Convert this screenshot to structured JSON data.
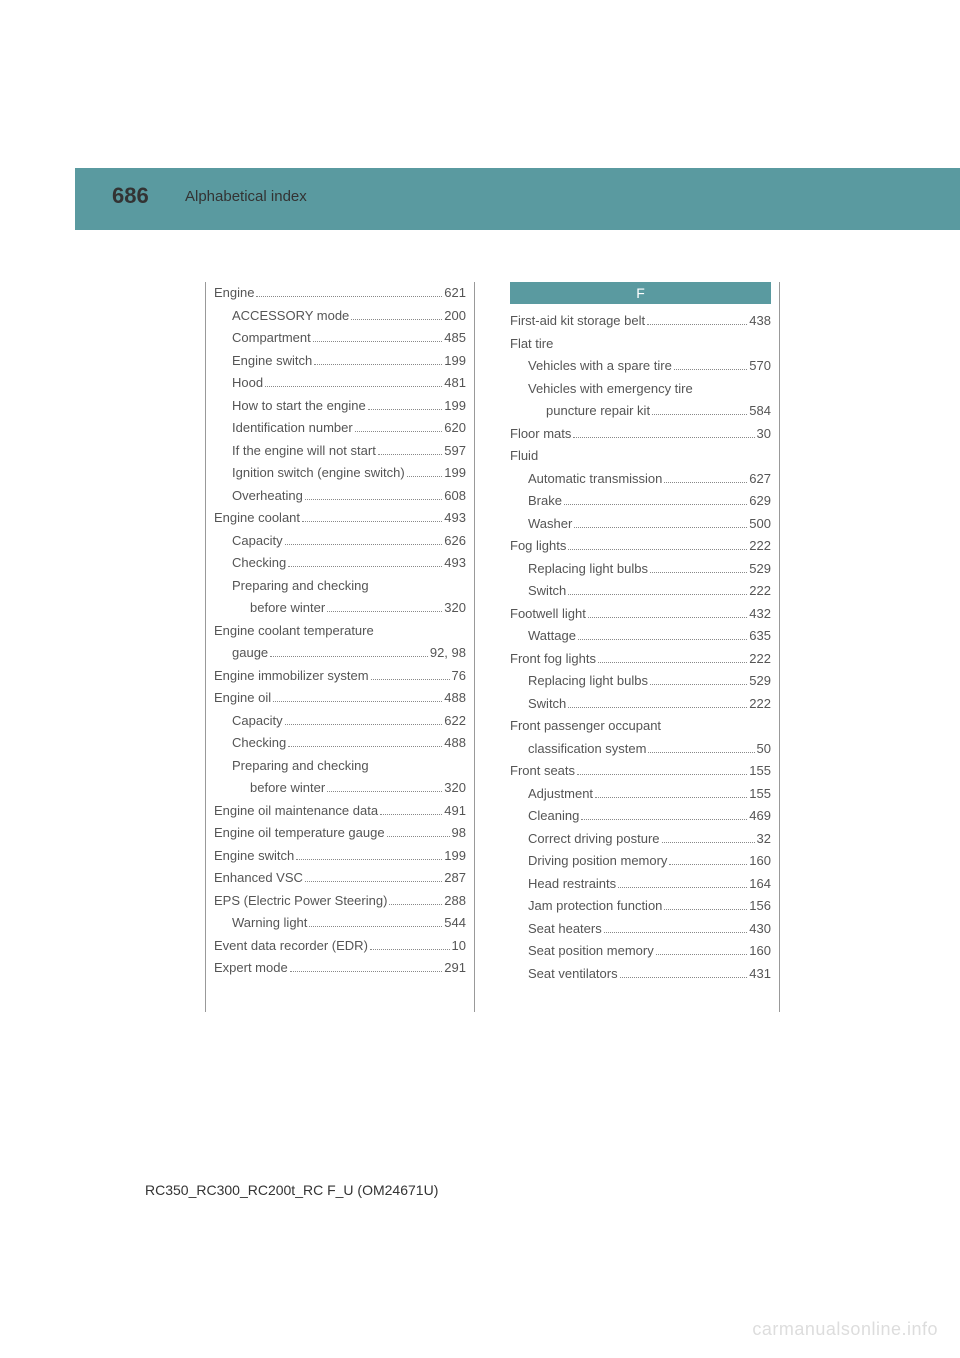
{
  "header": {
    "page_number": "686",
    "title": "Alphabetical index",
    "band_color": "#5a9aa0"
  },
  "footer": {
    "text": "RC350_RC300_RC200t_RC F_U (OM24671U)",
    "watermark": "carmanualsonline.info"
  },
  "left_column": [
    {
      "label": "Engine",
      "page": "621",
      "indent": 0
    },
    {
      "label": "ACCESSORY mode",
      "page": "200",
      "indent": 1
    },
    {
      "label": "Compartment",
      "page": "485",
      "indent": 1
    },
    {
      "label": "Engine switch",
      "page": "199",
      "indent": 1
    },
    {
      "label": "Hood",
      "page": "481",
      "indent": 1
    },
    {
      "label": "How to start the engine",
      "page": "199",
      "indent": 1
    },
    {
      "label": "Identification number",
      "page": "620",
      "indent": 1
    },
    {
      "label": "If the engine will not start",
      "page": "597",
      "indent": 1
    },
    {
      "label": "Ignition switch (engine switch)",
      "page": "199",
      "indent": 1
    },
    {
      "label": "Overheating",
      "page": "608",
      "indent": 1
    },
    {
      "label": "Engine coolant",
      "page": "493",
      "indent": 0
    },
    {
      "label": "Capacity",
      "page": "626",
      "indent": 1
    },
    {
      "label": "Checking",
      "page": "493",
      "indent": 1
    },
    {
      "label": "Preparing and checking",
      "page": "",
      "indent": 1,
      "no_page": true
    },
    {
      "label": "before winter",
      "page": "320",
      "indent": 2
    },
    {
      "label": "Engine coolant temperature",
      "page": "",
      "indent": 0,
      "no_page": true
    },
    {
      "label": "gauge",
      "page": "92, 98",
      "indent": 1,
      "continuation": true
    },
    {
      "label": "Engine immobilizer system",
      "page": "76",
      "indent": 0
    },
    {
      "label": "Engine oil",
      "page": "488",
      "indent": 0
    },
    {
      "label": "Capacity",
      "page": "622",
      "indent": 1
    },
    {
      "label": "Checking",
      "page": "488",
      "indent": 1
    },
    {
      "label": "Preparing and checking",
      "page": "",
      "indent": 1,
      "no_page": true
    },
    {
      "label": "before winter",
      "page": "320",
      "indent": 2
    },
    {
      "label": "Engine oil maintenance data",
      "page": "491",
      "indent": 0
    },
    {
      "label": "Engine oil temperature gauge",
      "page": "98",
      "indent": 0
    },
    {
      "label": "Engine switch",
      "page": "199",
      "indent": 0
    },
    {
      "label": "Enhanced VSC",
      "page": "287",
      "indent": 0
    },
    {
      "label": "EPS (Electric Power Steering)",
      "page": "288",
      "indent": 0
    },
    {
      "label": "Warning light",
      "page": "544",
      "indent": 1
    },
    {
      "label": "Event data recorder (EDR)",
      "page": "10",
      "indent": 0
    },
    {
      "label": "Expert mode",
      "page": "291",
      "indent": 0
    }
  ],
  "right_column": {
    "section_letter": "F",
    "entries": [
      {
        "label": "First-aid kit storage belt",
        "page": "438",
        "indent": 0
      },
      {
        "label": "Flat tire",
        "page": "",
        "indent": 0,
        "no_page": true
      },
      {
        "label": "Vehicles with a spare tire",
        "page": "570",
        "indent": 1
      },
      {
        "label": "Vehicles with emergency tire",
        "page": "",
        "indent": 1,
        "no_page": true
      },
      {
        "label": "puncture repair kit",
        "page": "584",
        "indent": 2
      },
      {
        "label": "Floor mats",
        "page": "30",
        "indent": 0
      },
      {
        "label": "Fluid",
        "page": "",
        "indent": 0,
        "no_page": true
      },
      {
        "label": "Automatic transmission",
        "page": "627",
        "indent": 1
      },
      {
        "label": "Brake",
        "page": "629",
        "indent": 1
      },
      {
        "label": "Washer",
        "page": "500",
        "indent": 1
      },
      {
        "label": "Fog lights",
        "page": "222",
        "indent": 0
      },
      {
        "label": "Replacing light bulbs",
        "page": "529",
        "indent": 1
      },
      {
        "label": "Switch",
        "page": "222",
        "indent": 1
      },
      {
        "label": "Footwell light",
        "page": "432",
        "indent": 0
      },
      {
        "label": "Wattage",
        "page": "635",
        "indent": 1
      },
      {
        "label": "Front fog lights",
        "page": "222",
        "indent": 0
      },
      {
        "label": "Replacing light bulbs",
        "page": "529",
        "indent": 1
      },
      {
        "label": "Switch",
        "page": "222",
        "indent": 1
      },
      {
        "label": "Front passenger occupant",
        "page": "",
        "indent": 0,
        "no_page": true
      },
      {
        "label": "classification system",
        "page": "50",
        "indent": 1,
        "continuation": true
      },
      {
        "label": "Front seats",
        "page": "155",
        "indent": 0
      },
      {
        "label": "Adjustment",
        "page": "155",
        "indent": 1
      },
      {
        "label": "Cleaning",
        "page": "469",
        "indent": 1
      },
      {
        "label": "Correct driving posture",
        "page": "32",
        "indent": 1
      },
      {
        "label": "Driving position memory",
        "page": "160",
        "indent": 1
      },
      {
        "label": "Head restraints",
        "page": "164",
        "indent": 1
      },
      {
        "label": "Jam protection function",
        "page": "156",
        "indent": 1
      },
      {
        "label": "Seat heaters",
        "page": "430",
        "indent": 1
      },
      {
        "label": "Seat position memory",
        "page": "160",
        "indent": 1
      },
      {
        "label": "Seat ventilators",
        "page": "431",
        "indent": 1
      }
    ]
  }
}
